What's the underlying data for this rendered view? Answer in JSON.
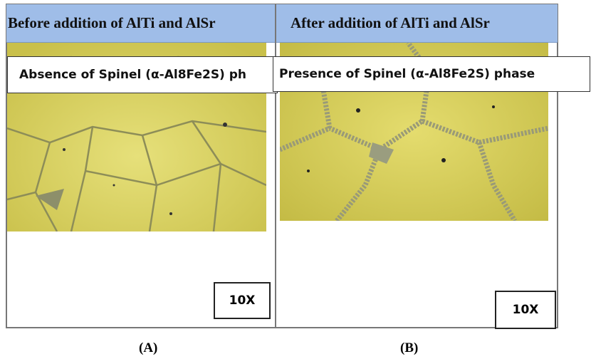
{
  "panels": [
    {
      "header": "Before addition of AlTi and AlSr",
      "caption": "Absence of Spinel (α-Al8Fe2S) ph",
      "magnification": "10X",
      "label": "(A)"
    },
    {
      "header": "After addition of AlTi and AlSr",
      "caption": "Presence of Spinel (α-Al8Fe2S) phase",
      "magnification": "10X",
      "label": "(B)"
    }
  ]
}
